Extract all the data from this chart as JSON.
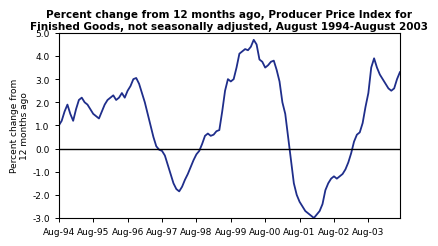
{
  "title": "Percent change from 12 months ago, Producer Price Index for\nFinished Goods, not seasonally adjusted, August 1994-August 2003",
  "ylabel": "Percent change from\n12 months ago",
  "line_color": "#1F2E8B",
  "line_width": 1.3,
  "background_color": "#ffffff",
  "ylim": [
    -3.0,
    5.0
  ],
  "yticks": [
    -3.0,
    -2.0,
    -1.0,
    0.0,
    1.0,
    2.0,
    3.0,
    4.0,
    5.0
  ],
  "xtick_labels": [
    "Aug-94",
    "Aug-95",
    "Aug-96",
    "Aug-97",
    "Aug-98",
    "Aug-99",
    "Aug-00",
    "Aug-01",
    "Aug-02",
    "Aug-03"
  ],
  "values": [
    1.0,
    1.2,
    1.6,
    1.9,
    1.5,
    1.2,
    1.7,
    2.1,
    2.2,
    2.0,
    1.9,
    1.7,
    1.5,
    1.4,
    1.3,
    1.6,
    1.9,
    2.1,
    2.2,
    2.3,
    2.1,
    2.2,
    2.4,
    2.2,
    2.5,
    2.7,
    3.0,
    3.05,
    2.8,
    2.4,
    2.0,
    1.5,
    1.0,
    0.5,
    0.1,
    -0.05,
    -0.1,
    -0.3,
    -0.7,
    -1.1,
    -1.5,
    -1.75,
    -1.85,
    -1.65,
    -1.35,
    -1.1,
    -0.8,
    -0.5,
    -0.25,
    -0.1,
    0.2,
    0.55,
    0.65,
    0.55,
    0.6,
    0.75,
    0.8,
    1.6,
    2.5,
    3.0,
    2.9,
    3.0,
    3.5,
    4.1,
    4.2,
    4.3,
    4.25,
    4.4,
    4.7,
    4.5,
    3.85,
    3.75,
    3.5,
    3.6,
    3.75,
    3.8,
    3.4,
    2.9,
    2.0,
    1.5,
    0.5,
    -0.5,
    -1.5,
    -2.0,
    -2.3,
    -2.5,
    -2.7,
    -2.8,
    -2.9,
    -3.0,
    -2.85,
    -2.7,
    -2.4,
    -1.8,
    -1.5,
    -1.3,
    -1.2,
    -1.3,
    -1.2,
    -1.1,
    -0.9,
    -0.6,
    -0.2,
    0.3,
    0.6,
    0.7,
    1.1,
    1.8,
    2.4,
    3.5,
    3.9,
    3.5,
    3.2,
    3.0,
    2.8,
    2.6,
    2.5,
    2.6,
    3.0,
    3.3
  ]
}
